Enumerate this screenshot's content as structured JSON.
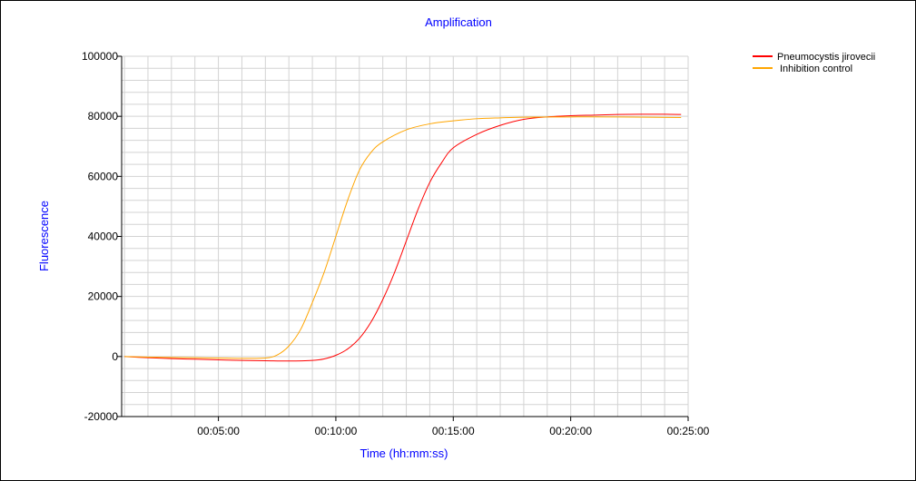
{
  "chart_data": {
    "type": "line",
    "title": "Amplification",
    "xlabel": "Time (hh:mm:ss)",
    "ylabel": "Fluorescence",
    "xunit": "minutes",
    "xlim": [
      0.88,
      25
    ],
    "ylim": [
      -20000,
      100000
    ],
    "x_tick_labels": [
      "00:05:00",
      "00:10:00",
      "00:15:00",
      "00:20:00",
      "00:25:00"
    ],
    "x_tick_values": [
      5,
      10,
      15,
      20,
      25
    ],
    "y_tick_values": [
      -20000,
      0,
      20000,
      40000,
      60000,
      80000,
      100000
    ],
    "y_tick_labels": [
      "-20000",
      "0",
      "20000",
      "40000",
      "60000",
      "80000",
      "100000"
    ],
    "grid": true,
    "legend_position": "top-right",
    "series": [
      {
        "name": "Pneumocystis jirovecii",
        "color": "#ff0000",
        "x": [
          1,
          2,
          3,
          4,
          5,
          6,
          7,
          8,
          9,
          9.5,
          10,
          10.5,
          11,
          11.5,
          12,
          12.5,
          13,
          13.5,
          14,
          14.5,
          15,
          16,
          17,
          18,
          19,
          20,
          21,
          22,
          23,
          24,
          24.7
        ],
        "y": [
          0,
          -400,
          -700,
          -900,
          -1100,
          -1300,
          -1400,
          -1500,
          -1300,
          -800,
          400,
          2500,
          6000,
          11500,
          19000,
          28000,
          38500,
          49000,
          58000,
          64500,
          69500,
          74000,
          77000,
          79000,
          79800,
          80200,
          80400,
          80600,
          80700,
          80700,
          80600
        ]
      },
      {
        "name": "Inhibition control",
        "color": "#ffa500",
        "x": [
          1,
          2,
          3,
          4,
          5,
          6,
          7,
          7.5,
          8,
          8.5,
          9,
          9.5,
          10,
          10.5,
          11,
          11.5,
          12,
          13,
          14,
          15,
          16,
          17,
          18,
          20,
          22,
          24.7
        ],
        "y": [
          0,
          -200,
          -300,
          -400,
          -500,
          -600,
          -500,
          500,
          3500,
          9000,
          18000,
          28000,
          40000,
          52000,
          62000,
          68000,
          71500,
          75500,
          77500,
          78500,
          79200,
          79500,
          79700,
          79800,
          79800,
          79600
        ]
      }
    ]
  }
}
